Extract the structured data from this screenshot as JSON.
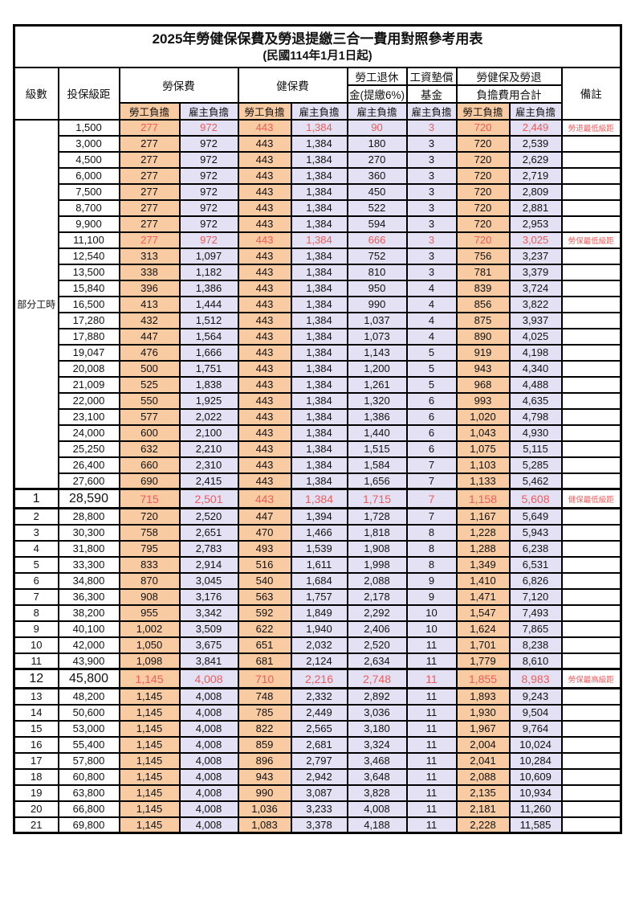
{
  "title": "2025年勞健保保費及勞退提繳三合一費用對照參考用表",
  "subtitle": "(民國114年1月1日起)",
  "colors": {
    "employee_bg": "#F8CBA3",
    "employer_bg": "#E3E1F3",
    "highlight_red": "#F15B5B",
    "border": "#000000"
  },
  "header": {
    "level": "級數",
    "bracket": "投保級距",
    "labor_ins": "勞保費",
    "health_ins": "健保費",
    "pension_line1": "勞工退休",
    "pension_line2": "金(提繳6%)",
    "wage_fund_line1": "工資墊償",
    "wage_fund_line2": "基金",
    "total_line1": "勞健保及勞退",
    "total_line2": "負擔費用合計",
    "remark": "備註",
    "employee": "勞工負擔",
    "employer": "雇主負擔"
  },
  "part_time_label": "部分工時",
  "rows": [
    {
      "level": null,
      "bracket": "1,500",
      "v": [
        "277",
        "972",
        "443",
        "1,384",
        "90",
        "3",
        "720",
        "2,449"
      ],
      "remark": "勞退最低級距",
      "red": true,
      "big": false
    },
    {
      "level": null,
      "bracket": "3,000",
      "v": [
        "277",
        "972",
        "443",
        "1,384",
        "180",
        "3",
        "720",
        "2,539"
      ],
      "remark": "",
      "red": false,
      "big": false
    },
    {
      "level": null,
      "bracket": "4,500",
      "v": [
        "277",
        "972",
        "443",
        "1,384",
        "270",
        "3",
        "720",
        "2,629"
      ],
      "remark": "",
      "red": false,
      "big": false
    },
    {
      "level": null,
      "bracket": "6,000",
      "v": [
        "277",
        "972",
        "443",
        "1,384",
        "360",
        "3",
        "720",
        "2,719"
      ],
      "remark": "",
      "red": false,
      "big": false
    },
    {
      "level": null,
      "bracket": "7,500",
      "v": [
        "277",
        "972",
        "443",
        "1,384",
        "450",
        "3",
        "720",
        "2,809"
      ],
      "remark": "",
      "red": false,
      "big": false
    },
    {
      "level": null,
      "bracket": "8,700",
      "v": [
        "277",
        "972",
        "443",
        "1,384",
        "522",
        "3",
        "720",
        "2,881"
      ],
      "remark": "",
      "red": false,
      "big": false
    },
    {
      "level": null,
      "bracket": "9,900",
      "v": [
        "277",
        "972",
        "443",
        "1,384",
        "594",
        "3",
        "720",
        "2,953"
      ],
      "remark": "",
      "red": false,
      "big": false
    },
    {
      "level": null,
      "bracket": "11,100",
      "v": [
        "277",
        "972",
        "443",
        "1,384",
        "666",
        "3",
        "720",
        "3,025"
      ],
      "remark": "勞保最低級距",
      "red": true,
      "big": false
    },
    {
      "level": null,
      "bracket": "12,540",
      "v": [
        "313",
        "1,097",
        "443",
        "1,384",
        "752",
        "3",
        "756",
        "3,237"
      ],
      "remark": "",
      "red": false,
      "big": false
    },
    {
      "level": null,
      "bracket": "13,500",
      "v": [
        "338",
        "1,182",
        "443",
        "1,384",
        "810",
        "3",
        "781",
        "3,379"
      ],
      "remark": "",
      "red": false,
      "big": false
    },
    {
      "level": null,
      "bracket": "15,840",
      "v": [
        "396",
        "1,386",
        "443",
        "1,384",
        "950",
        "4",
        "839",
        "3,724"
      ],
      "remark": "",
      "red": false,
      "big": false
    },
    {
      "level": null,
      "bracket": "16,500",
      "v": [
        "413",
        "1,444",
        "443",
        "1,384",
        "990",
        "4",
        "856",
        "3,822"
      ],
      "remark": "",
      "red": false,
      "big": false
    },
    {
      "level": null,
      "bracket": "17,280",
      "v": [
        "432",
        "1,512",
        "443",
        "1,384",
        "1,037",
        "4",
        "875",
        "3,937"
      ],
      "remark": "",
      "red": false,
      "big": false
    },
    {
      "level": null,
      "bracket": "17,880",
      "v": [
        "447",
        "1,564",
        "443",
        "1,384",
        "1,073",
        "4",
        "890",
        "4,025"
      ],
      "remark": "",
      "red": false,
      "big": false
    },
    {
      "level": null,
      "bracket": "19,047",
      "v": [
        "476",
        "1,666",
        "443",
        "1,384",
        "1,143",
        "5",
        "919",
        "4,198"
      ],
      "remark": "",
      "red": false,
      "big": false
    },
    {
      "level": null,
      "bracket": "20,008",
      "v": [
        "500",
        "1,751",
        "443",
        "1,384",
        "1,200",
        "5",
        "943",
        "4,340"
      ],
      "remark": "",
      "red": false,
      "big": false
    },
    {
      "level": null,
      "bracket": "21,009",
      "v": [
        "525",
        "1,838",
        "443",
        "1,384",
        "1,261",
        "5",
        "968",
        "4,488"
      ],
      "remark": "",
      "red": false,
      "big": false
    },
    {
      "level": null,
      "bracket": "22,000",
      "v": [
        "550",
        "1,925",
        "443",
        "1,384",
        "1,320",
        "6",
        "993",
        "4,635"
      ],
      "remark": "",
      "red": false,
      "big": false
    },
    {
      "level": null,
      "bracket": "23,100",
      "v": [
        "577",
        "2,022",
        "443",
        "1,384",
        "1,386",
        "6",
        "1,020",
        "4,798"
      ],
      "remark": "",
      "red": false,
      "big": false
    },
    {
      "level": null,
      "bracket": "24,000",
      "v": [
        "600",
        "2,100",
        "443",
        "1,384",
        "1,440",
        "6",
        "1,043",
        "4,930"
      ],
      "remark": "",
      "red": false,
      "big": false
    },
    {
      "level": null,
      "bracket": "25,250",
      "v": [
        "632",
        "2,210",
        "443",
        "1,384",
        "1,515",
        "6",
        "1,075",
        "5,115"
      ],
      "remark": "",
      "red": false,
      "big": false
    },
    {
      "level": null,
      "bracket": "26,400",
      "v": [
        "660",
        "2,310",
        "443",
        "1,384",
        "1,584",
        "7",
        "1,103",
        "5,285"
      ],
      "remark": "",
      "red": false,
      "big": false
    },
    {
      "level": null,
      "bracket": "27,600",
      "v": [
        "690",
        "2,415",
        "443",
        "1,384",
        "1,656",
        "7",
        "1,133",
        "5,462"
      ],
      "remark": "",
      "red": false,
      "big": false
    },
    {
      "level": "1",
      "bracket": "28,590",
      "v": [
        "715",
        "2,501",
        "443",
        "1,384",
        "1,715",
        "7",
        "1,158",
        "5,608"
      ],
      "remark": "健保最低級距",
      "red": true,
      "big": true
    },
    {
      "level": "2",
      "bracket": "28,800",
      "v": [
        "720",
        "2,520",
        "447",
        "1,394",
        "1,728",
        "7",
        "1,167",
        "5,649"
      ],
      "remark": "",
      "red": false,
      "big": false
    },
    {
      "level": "3",
      "bracket": "30,300",
      "v": [
        "758",
        "2,651",
        "470",
        "1,466",
        "1,818",
        "8",
        "1,228",
        "5,943"
      ],
      "remark": "",
      "red": false,
      "big": false
    },
    {
      "level": "4",
      "bracket": "31,800",
      "v": [
        "795",
        "2,783",
        "493",
        "1,539",
        "1,908",
        "8",
        "1,288",
        "6,238"
      ],
      "remark": "",
      "red": false,
      "big": false
    },
    {
      "level": "5",
      "bracket": "33,300",
      "v": [
        "833",
        "2,914",
        "516",
        "1,611",
        "1,998",
        "8",
        "1,349",
        "6,531"
      ],
      "remark": "",
      "red": false,
      "big": false
    },
    {
      "level": "6",
      "bracket": "34,800",
      "v": [
        "870",
        "3,045",
        "540",
        "1,684",
        "2,088",
        "9",
        "1,410",
        "6,826"
      ],
      "remark": "",
      "red": false,
      "big": false
    },
    {
      "level": "7",
      "bracket": "36,300",
      "v": [
        "908",
        "3,176",
        "563",
        "1,757",
        "2,178",
        "9",
        "1,471",
        "7,120"
      ],
      "remark": "",
      "red": false,
      "big": false
    },
    {
      "level": "8",
      "bracket": "38,200",
      "v": [
        "955",
        "3,342",
        "592",
        "1,849",
        "2,292",
        "10",
        "1,547",
        "7,493"
      ],
      "remark": "",
      "red": false,
      "big": false
    },
    {
      "level": "9",
      "bracket": "40,100",
      "v": [
        "1,002",
        "3,509",
        "622",
        "1,940",
        "2,406",
        "10",
        "1,624",
        "7,865"
      ],
      "remark": "",
      "red": false,
      "big": false
    },
    {
      "level": "10",
      "bracket": "42,000",
      "v": [
        "1,050",
        "3,675",
        "651",
        "2,032",
        "2,520",
        "11",
        "1,701",
        "8,238"
      ],
      "remark": "",
      "red": false,
      "big": false
    },
    {
      "level": "11",
      "bracket": "43,900",
      "v": [
        "1,098",
        "3,841",
        "681",
        "2,124",
        "2,634",
        "11",
        "1,779",
        "8,610"
      ],
      "remark": "",
      "red": false,
      "big": false
    },
    {
      "level": "12",
      "bracket": "45,800",
      "v": [
        "1,145",
        "4,008",
        "710",
        "2,216",
        "2,748",
        "11",
        "1,855",
        "8,983"
      ],
      "remark": "勞保最高級距",
      "red": true,
      "big": true
    },
    {
      "level": "13",
      "bracket": "48,200",
      "v": [
        "1,145",
        "4,008",
        "748",
        "2,332",
        "2,892",
        "11",
        "1,893",
        "9,243"
      ],
      "remark": "",
      "red": false,
      "big": false
    },
    {
      "level": "14",
      "bracket": "50,600",
      "v": [
        "1,145",
        "4,008",
        "785",
        "2,449",
        "3,036",
        "11",
        "1,930",
        "9,504"
      ],
      "remark": "",
      "red": false,
      "big": false
    },
    {
      "level": "15",
      "bracket": "53,000",
      "v": [
        "1,145",
        "4,008",
        "822",
        "2,565",
        "3,180",
        "11",
        "1,967",
        "9,764"
      ],
      "remark": "",
      "red": false,
      "big": false
    },
    {
      "level": "16",
      "bracket": "55,400",
      "v": [
        "1,145",
        "4,008",
        "859",
        "2,681",
        "3,324",
        "11",
        "2,004",
        "10,024"
      ],
      "remark": "",
      "red": false,
      "big": false
    },
    {
      "level": "17",
      "bracket": "57,800",
      "v": [
        "1,145",
        "4,008",
        "896",
        "2,797",
        "3,468",
        "11",
        "2,041",
        "10,284"
      ],
      "remark": "",
      "red": false,
      "big": false
    },
    {
      "level": "18",
      "bracket": "60,800",
      "v": [
        "1,145",
        "4,008",
        "943",
        "2,942",
        "3,648",
        "11",
        "2,088",
        "10,609"
      ],
      "remark": "",
      "red": false,
      "big": false
    },
    {
      "level": "19",
      "bracket": "63,800",
      "v": [
        "1,145",
        "4,008",
        "990",
        "3,087",
        "3,828",
        "11",
        "2,135",
        "10,934"
      ],
      "remark": "",
      "red": false,
      "big": false
    },
    {
      "level": "20",
      "bracket": "66,800",
      "v": [
        "1,145",
        "4,008",
        "1,036",
        "3,233",
        "4,008",
        "11",
        "2,181",
        "11,260"
      ],
      "remark": "",
      "red": false,
      "big": false
    },
    {
      "level": "21",
      "bracket": "69,800",
      "v": [
        "1,145",
        "4,008",
        "1,083",
        "3,378",
        "4,188",
        "11",
        "2,228",
        "11,585"
      ],
      "remark": "",
      "red": false,
      "big": false
    }
  ]
}
